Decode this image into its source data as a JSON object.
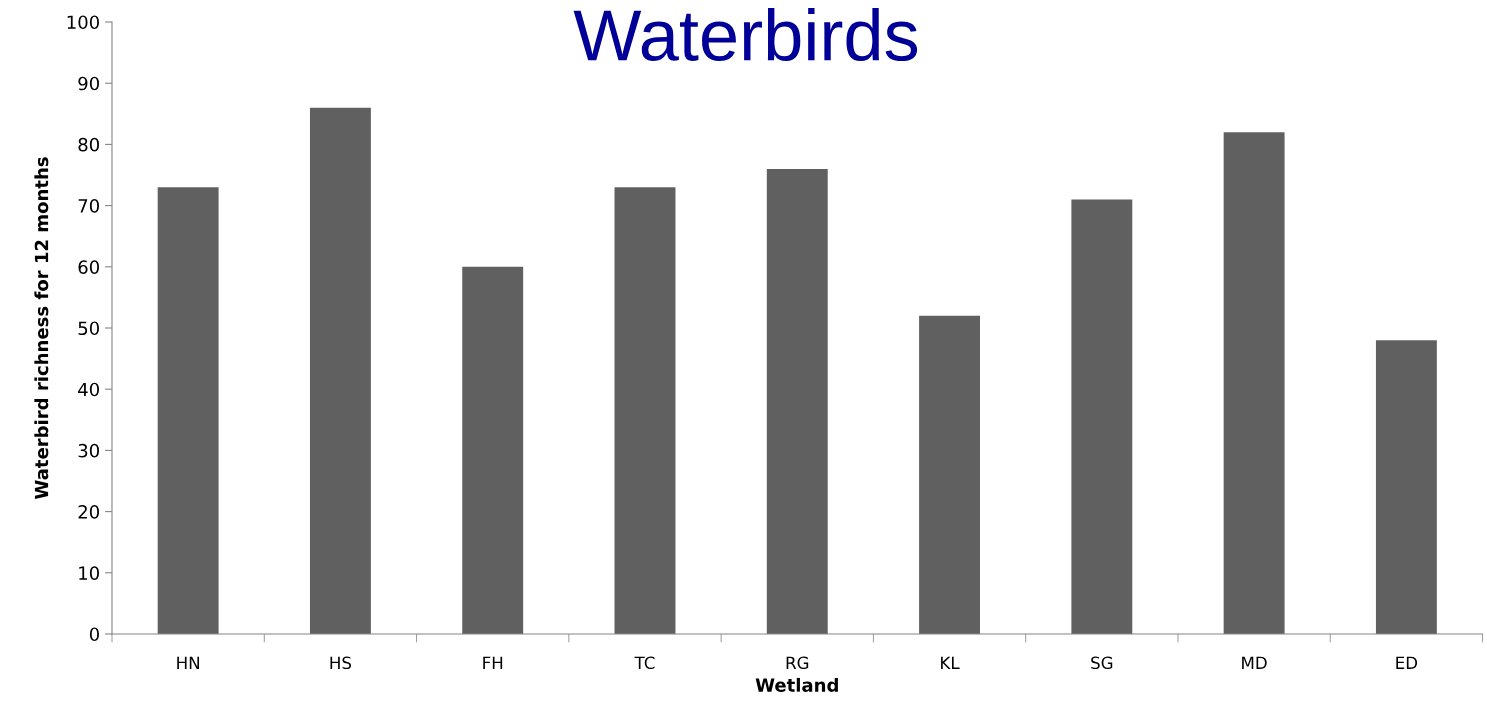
{
  "chart_data": {
    "type": "bar",
    "title": "Waterbirds",
    "xlabel": "Wetland",
    "ylabel": "Waterbird richness for 12 months",
    "categories": [
      "HN",
      "HS",
      "FH",
      "TC",
      "RG",
      "KL",
      "SG",
      "MD",
      "ED"
    ],
    "values": [
      73,
      86,
      60,
      73,
      76,
      52,
      71,
      82,
      48
    ],
    "color": "#606060",
    "ylim": [
      0,
      100
    ],
    "yticks": [
      0,
      10,
      20,
      30,
      40,
      50,
      60,
      70,
      80,
      90,
      100
    ],
    "grid": false,
    "legend": false
  }
}
